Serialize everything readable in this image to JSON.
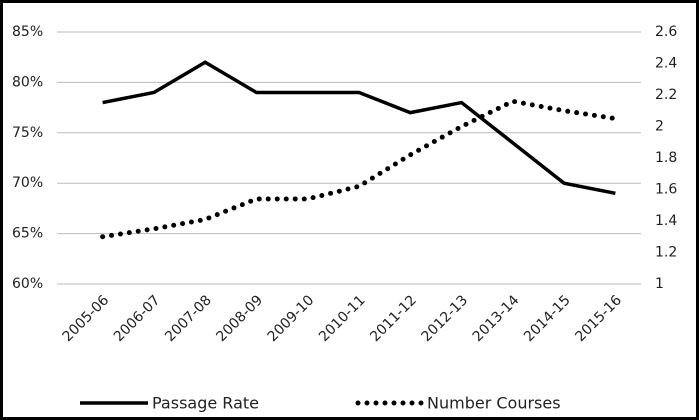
{
  "chart_data": {
    "type": "line",
    "categories": [
      "2005-06",
      "2006-07",
      "2007-08",
      "2008-09",
      "2009-10",
      "2010-11",
      "2011-12",
      "2012-13",
      "2013-14",
      "2014-15",
      "2015-16"
    ],
    "series": [
      {
        "name": "Passage Rate",
        "color": "#000000",
        "style": "solid",
        "values": [
          78,
          79,
          82,
          79,
          79,
          79,
          77,
          78,
          74,
          70,
          69
        ]
      },
      {
        "name": "Number Courses",
        "color": "#000000",
        "style": "dotted",
        "axis": "y2",
        "values": [
          1.3,
          1.35,
          1.41,
          1.54,
          1.54,
          1.62,
          1.82,
          2.0,
          2.16,
          2.1,
          2.05
        ]
      }
    ],
    "ylim": [
      60,
      85
    ],
    "yticks": [
      {
        "value": 60,
        "label": "60%"
      },
      {
        "value": 65,
        "label": "65%"
      },
      {
        "value": 70,
        "label": "70%"
      },
      {
        "value": 75,
        "label": "75%"
      },
      {
        "value": 80,
        "label": "80%"
      },
      {
        "value": 85,
        "label": "85%"
      }
    ],
    "y2lim": [
      1,
      2.6
    ],
    "y2ticks": [
      1,
      1.2,
      1.4,
      1.6,
      1.8,
      2,
      2.2,
      2.4,
      2.6
    ],
    "grid": true,
    "legend": "bottom"
  }
}
